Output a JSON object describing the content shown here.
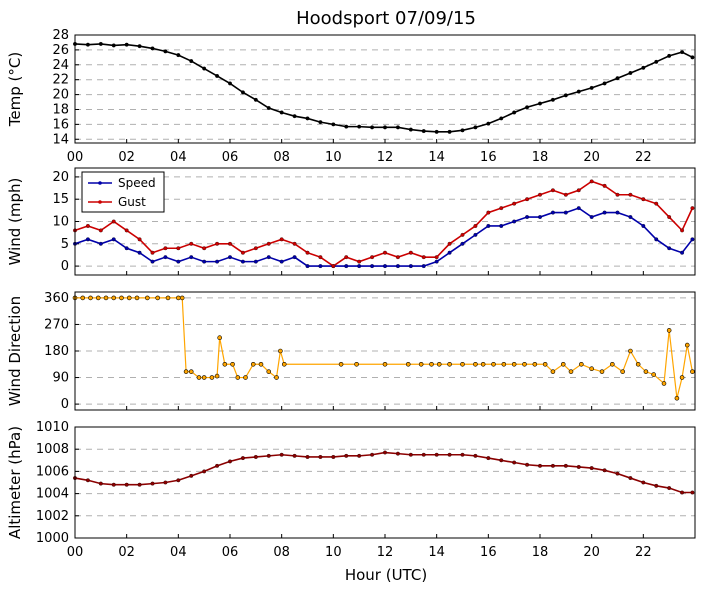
{
  "chart_data": {
    "title": "Hoodsport 07/09/15",
    "xlabel": "Hour (UTC)",
    "x_ticks": [
      "00",
      "02",
      "04",
      "06",
      "08",
      "10",
      "12",
      "14",
      "16",
      "18",
      "20",
      "22"
    ],
    "xlim": [
      0,
      24
    ],
    "panels": [
      {
        "type": "line",
        "ylabel": "Temp (°C)",
        "ylim": [
          13.5,
          28
        ],
        "y_ticks": [
          "14",
          "16",
          "18",
          "20",
          "22",
          "24",
          "26",
          "28"
        ],
        "grid": true,
        "series": [
          {
            "color": "#000000",
            "x": [
              0,
              0.5,
              1,
              1.5,
              2,
              2.5,
              3,
              3.5,
              4,
              4.5,
              5,
              5.5,
              6,
              6.5,
              7,
              7.5,
              8,
              8.5,
              9,
              9.5,
              10,
              10.5,
              11,
              11.5,
              12,
              12.5,
              13,
              13.5,
              14,
              14.5,
              15,
              15.5,
              16,
              16.5,
              17,
              17.5,
              18,
              18.5,
              19,
              19.5,
              20,
              20.5,
              21,
              21.5,
              22,
              22.5,
              23,
              23.5,
              23.9
            ],
            "y": [
              26.8,
              26.7,
              26.8,
              26.6,
              26.7,
              26.5,
              26.2,
              25.8,
              25.3,
              24.5,
              23.5,
              22.5,
              21.5,
              20.3,
              19.3,
              18.2,
              17.6,
              17.1,
              16.8,
              16.3,
              16.0,
              15.7,
              15.7,
              15.6,
              15.6,
              15.6,
              15.3,
              15.1,
              15.0,
              15.0,
              15.2,
              15.6,
              16.1,
              16.8,
              17.6,
              18.3,
              18.8,
              19.3,
              19.9,
              20.4,
              20.9,
              21.5,
              22.2,
              22.9,
              23.6,
              24.4,
              25.2,
              25.7,
              25.0
            ]
          }
        ]
      },
      {
        "type": "line",
        "ylabel": "Wind (mph)",
        "ylim": [
          -2,
          22
        ],
        "y_ticks": [
          "0",
          "5",
          "10",
          "15",
          "20"
        ],
        "grid": true,
        "legend": "top-left",
        "series": [
          {
            "name": "Speed",
            "color": "#0000aa",
            "x": [
              0,
              0.5,
              1,
              1.5,
              2,
              2.5,
              3,
              3.5,
              4,
              4.5,
              5,
              5.5,
              6,
              6.5,
              7,
              7.5,
              8,
              8.5,
              9,
              9.5,
              10,
              10.5,
              11,
              11.5,
              12,
              12.5,
              13,
              13.5,
              14,
              14.5,
              15,
              15.5,
              16,
              16.5,
              17,
              17.5,
              18,
              18.5,
              19,
              19.5,
              20,
              20.5,
              21,
              21.5,
              22,
              22.5,
              23,
              23.5,
              23.9
            ],
            "y": [
              5,
              6,
              5,
              6,
              4,
              3,
              1,
              2,
              1,
              2,
              1,
              1,
              2,
              1,
              1,
              2,
              1,
              2,
              0,
              0,
              0,
              0,
              0,
              0,
              0,
              0,
              0,
              0,
              1,
              3,
              5,
              7,
              9,
              9,
              10,
              11,
              11,
              12,
              12,
              13,
              11,
              12,
              12,
              11,
              9,
              6,
              4,
              3,
              6
            ]
          },
          {
            "name": "Gust",
            "color": "#cc0000",
            "x": [
              0,
              0.5,
              1,
              1.5,
              2,
              2.5,
              3,
              3.5,
              4,
              4.5,
              5,
              5.5,
              6,
              6.5,
              7,
              7.5,
              8,
              8.5,
              9,
              9.5,
              10,
              10.5,
              11,
              11.5,
              12,
              12.5,
              13,
              13.5,
              14,
              14.5,
              15,
              15.5,
              16,
              16.5,
              17,
              17.5,
              18,
              18.5,
              19,
              19.5,
              20,
              20.5,
              21,
              21.5,
              22,
              22.5,
              23,
              23.5,
              23.9
            ],
            "y": [
              8,
              9,
              8,
              10,
              8,
              6,
              3,
              4,
              4,
              5,
              4,
              5,
              5,
              3,
              4,
              5,
              6,
              5,
              3,
              2,
              0,
              2,
              1,
              2,
              3,
              2,
              3,
              2,
              2,
              5,
              7,
              9,
              12,
              13,
              14,
              15,
              16,
              17,
              16,
              17,
              19,
              18,
              16,
              16,
              15,
              14,
              11,
              8,
              13
            ]
          }
        ]
      },
      {
        "type": "scatter",
        "ylabel": "Wind Direction",
        "ylim": [
          -20,
          380
        ],
        "y_ticks": [
          "0",
          "90",
          "180",
          "270",
          "360"
        ],
        "grid": true,
        "series": [
          {
            "color": "#ffa500",
            "x": [
              0,
              0.3,
              0.6,
              0.9,
              1.2,
              1.5,
              1.8,
              2.1,
              2.4,
              2.8,
              3.2,
              3.6,
              4.0,
              4.15,
              4.3,
              4.5,
              4.8,
              5.0,
              5.3,
              5.5,
              5.6,
              5.8,
              6.1,
              6.3,
              6.6,
              6.9,
              7.2,
              7.5,
              7.8,
              7.95,
              8.1,
              10.3,
              10.9,
              12.0,
              12.9,
              13.4,
              13.8,
              14.1,
              14.5,
              15.0,
              15.5,
              15.8,
              16.2,
              16.6,
              17.0,
              17.4,
              17.8,
              18.2,
              18.5,
              18.9,
              19.2,
              19.6,
              20.0,
              20.4,
              20.8,
              21.2,
              21.5,
              21.8,
              22.1,
              22.4,
              22.8,
              23.0,
              23.3,
              23.5,
              23.7,
              23.9
            ],
            "y": [
              360,
              360,
              360,
              360,
              360,
              360,
              360,
              360,
              360,
              360,
              360,
              360,
              360,
              360,
              110,
              110,
              90,
              90,
              90,
              95,
              225,
              135,
              135,
              90,
              90,
              135,
              135,
              110,
              90,
              180,
              135,
              135,
              135,
              135,
              135,
              135,
              135,
              135,
              135,
              135,
              135,
              135,
              135,
              135,
              135,
              135,
              135,
              135,
              110,
              135,
              110,
              135,
              120,
              110,
              135,
              110,
              180,
              135,
              110,
              100,
              70,
              250,
              20,
              90,
              200,
              110
            ]
          }
        ]
      },
      {
        "type": "line",
        "ylabel": "Altimeter (hPa)",
        "ylim": [
          1000,
          1010
        ],
        "y_ticks": [
          "1000",
          "1002",
          "1004",
          "1006",
          "1008",
          "1010"
        ],
        "grid": true,
        "series": [
          {
            "color": "#8b0000",
            "x": [
              0,
              0.5,
              1,
              1.5,
              2,
              2.5,
              3,
              3.5,
              4,
              4.5,
              5,
              5.5,
              6,
              6.5,
              7,
              7.5,
              8,
              8.5,
              9,
              9.5,
              10,
              10.5,
              11,
              11.5,
              12,
              12.5,
              13,
              13.5,
              14,
              14.5,
              15,
              15.5,
              16,
              16.5,
              17,
              17.5,
              18,
              18.5,
              19,
              19.5,
              20,
              20.5,
              21,
              21.5,
              22,
              22.5,
              23,
              23.5,
              23.9
            ],
            "y": [
              1005.4,
              1005.2,
              1004.9,
              1004.8,
              1004.8,
              1004.8,
              1004.9,
              1005.0,
              1005.2,
              1005.6,
              1006.0,
              1006.5,
              1006.9,
              1007.2,
              1007.3,
              1007.4,
              1007.5,
              1007.4,
              1007.3,
              1007.3,
              1007.3,
              1007.4,
              1007.4,
              1007.5,
              1007.7,
              1007.6,
              1007.5,
              1007.5,
              1007.5,
              1007.5,
              1007.5,
              1007.4,
              1007.2,
              1007.0,
              1006.8,
              1006.6,
              1006.5,
              1006.5,
              1006.5,
              1006.4,
              1006.3,
              1006.1,
              1005.8,
              1005.4,
              1005.0,
              1004.7,
              1004.5,
              1004.1,
              1004.1
            ]
          }
        ]
      }
    ]
  }
}
